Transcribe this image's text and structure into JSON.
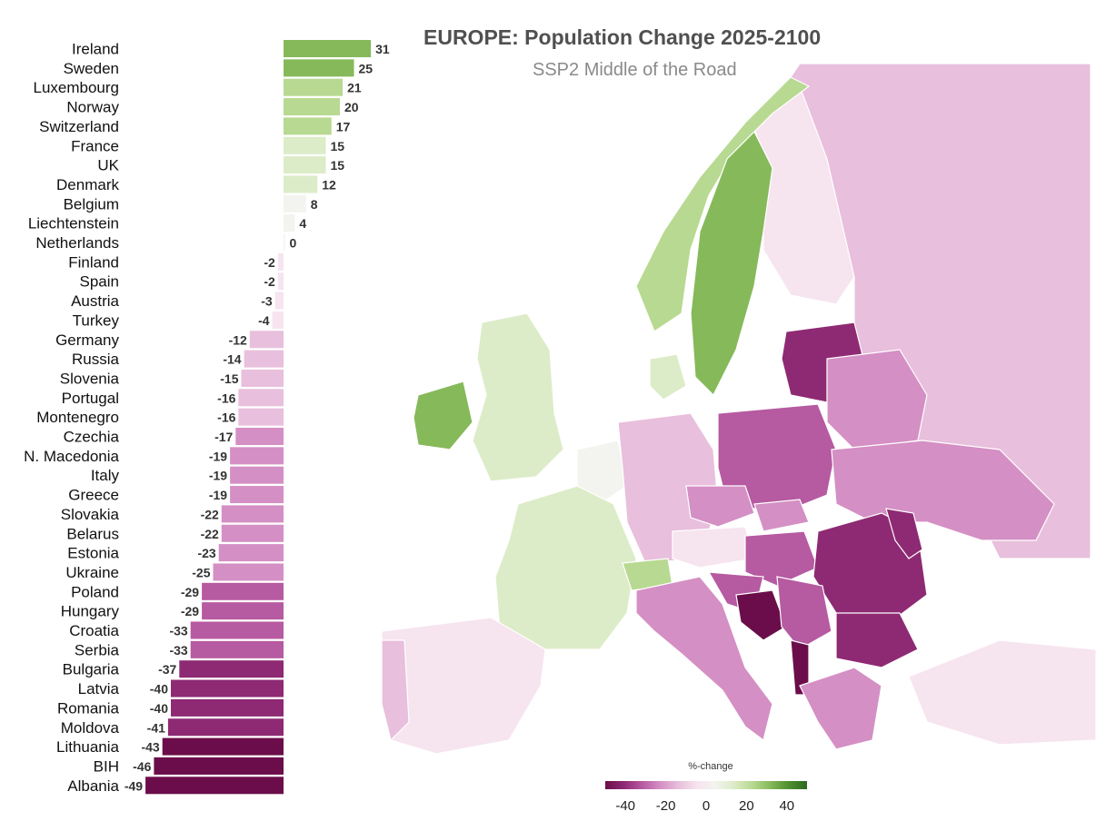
{
  "title": "EUROPE: Population Change 2025-2100",
  "subtitle": "SSP2 Middle of the Road",
  "chart_data": {
    "type": "bar",
    "orientation": "horizontal",
    "categories": [
      "Ireland",
      "Sweden",
      "Luxembourg",
      "Norway",
      "Switzerland",
      "France",
      "UK",
      "Denmark",
      "Belgium",
      "Liechtenstein",
      "Netherlands",
      "Finland",
      "Spain",
      "Austria",
      "Turkey",
      "Germany",
      "Russia",
      "Slovenia",
      "Portugal",
      "Montenegro",
      "Czechia",
      "N. Macedonia",
      "Italy",
      "Greece",
      "Slovakia",
      "Belarus",
      "Estonia",
      "Ukraine",
      "Poland",
      "Hungary",
      "Croatia",
      "Serbia",
      "Bulgaria",
      "Latvia",
      "Romania",
      "Moldova",
      "Lithuania",
      "BIH",
      "Albania"
    ],
    "values": [
      31,
      25,
      21,
      20,
      17,
      15,
      15,
      12,
      8,
      4,
      0,
      -2,
      -2,
      -3,
      -4,
      -12,
      -14,
      -15,
      -16,
      -16,
      -17,
      -19,
      -19,
      -19,
      -22,
      -22,
      -23,
      -25,
      -29,
      -29,
      -33,
      -33,
      -37,
      -40,
      -40,
      -41,
      -43,
      -46,
      -49
    ],
    "xlim": [
      -50,
      50
    ],
    "color_scale": {
      "palette": [
        "#6b0d4a",
        "#8e2a73",
        "#b65aa1",
        "#d48fc4",
        "#e8bfdc",
        "#f6e4ef",
        "#f3f3ef",
        "#dcecc8",
        "#b8d991",
        "#86b95a",
        "#4f8f2f",
        "#2c6a1f"
      ],
      "domain": [
        -50,
        50
      ]
    }
  },
  "legend": {
    "title": "%-change",
    "ticks": [
      "-40",
      "-20",
      "0",
      "20",
      "40"
    ],
    "tick_values": [
      -40,
      -20,
      0,
      20,
      40
    ],
    "range": [
      -50,
      50
    ]
  },
  "map_values": {
    "Iceland-like Ireland": 31,
    "Sweden": 25,
    "Norway": 20,
    "Finland": -2,
    "UK": 15,
    "Ireland": 31,
    "France": 15,
    "Spain": -2,
    "Portugal": -16,
    "Italy": -19,
    "Germany": -12,
    "Poland": -29,
    "Belarus": -22,
    "Ukraine": -25,
    "Russia": -14,
    "Romania": -40,
    "Bulgaria": -37,
    "Serbia": -33,
    "Hungary": -29,
    "Greece": -19,
    "Turkey": -4,
    "Baltics": -40,
    "Denmark": 12,
    "Switzerland": 17,
    "Austria": -3,
    "Czechia": -17,
    "Slovakia": -22,
    "Croatia": -33,
    "BIH": -46,
    "Albania": -49,
    "Moldova": -41,
    "Benelux": 8
  }
}
